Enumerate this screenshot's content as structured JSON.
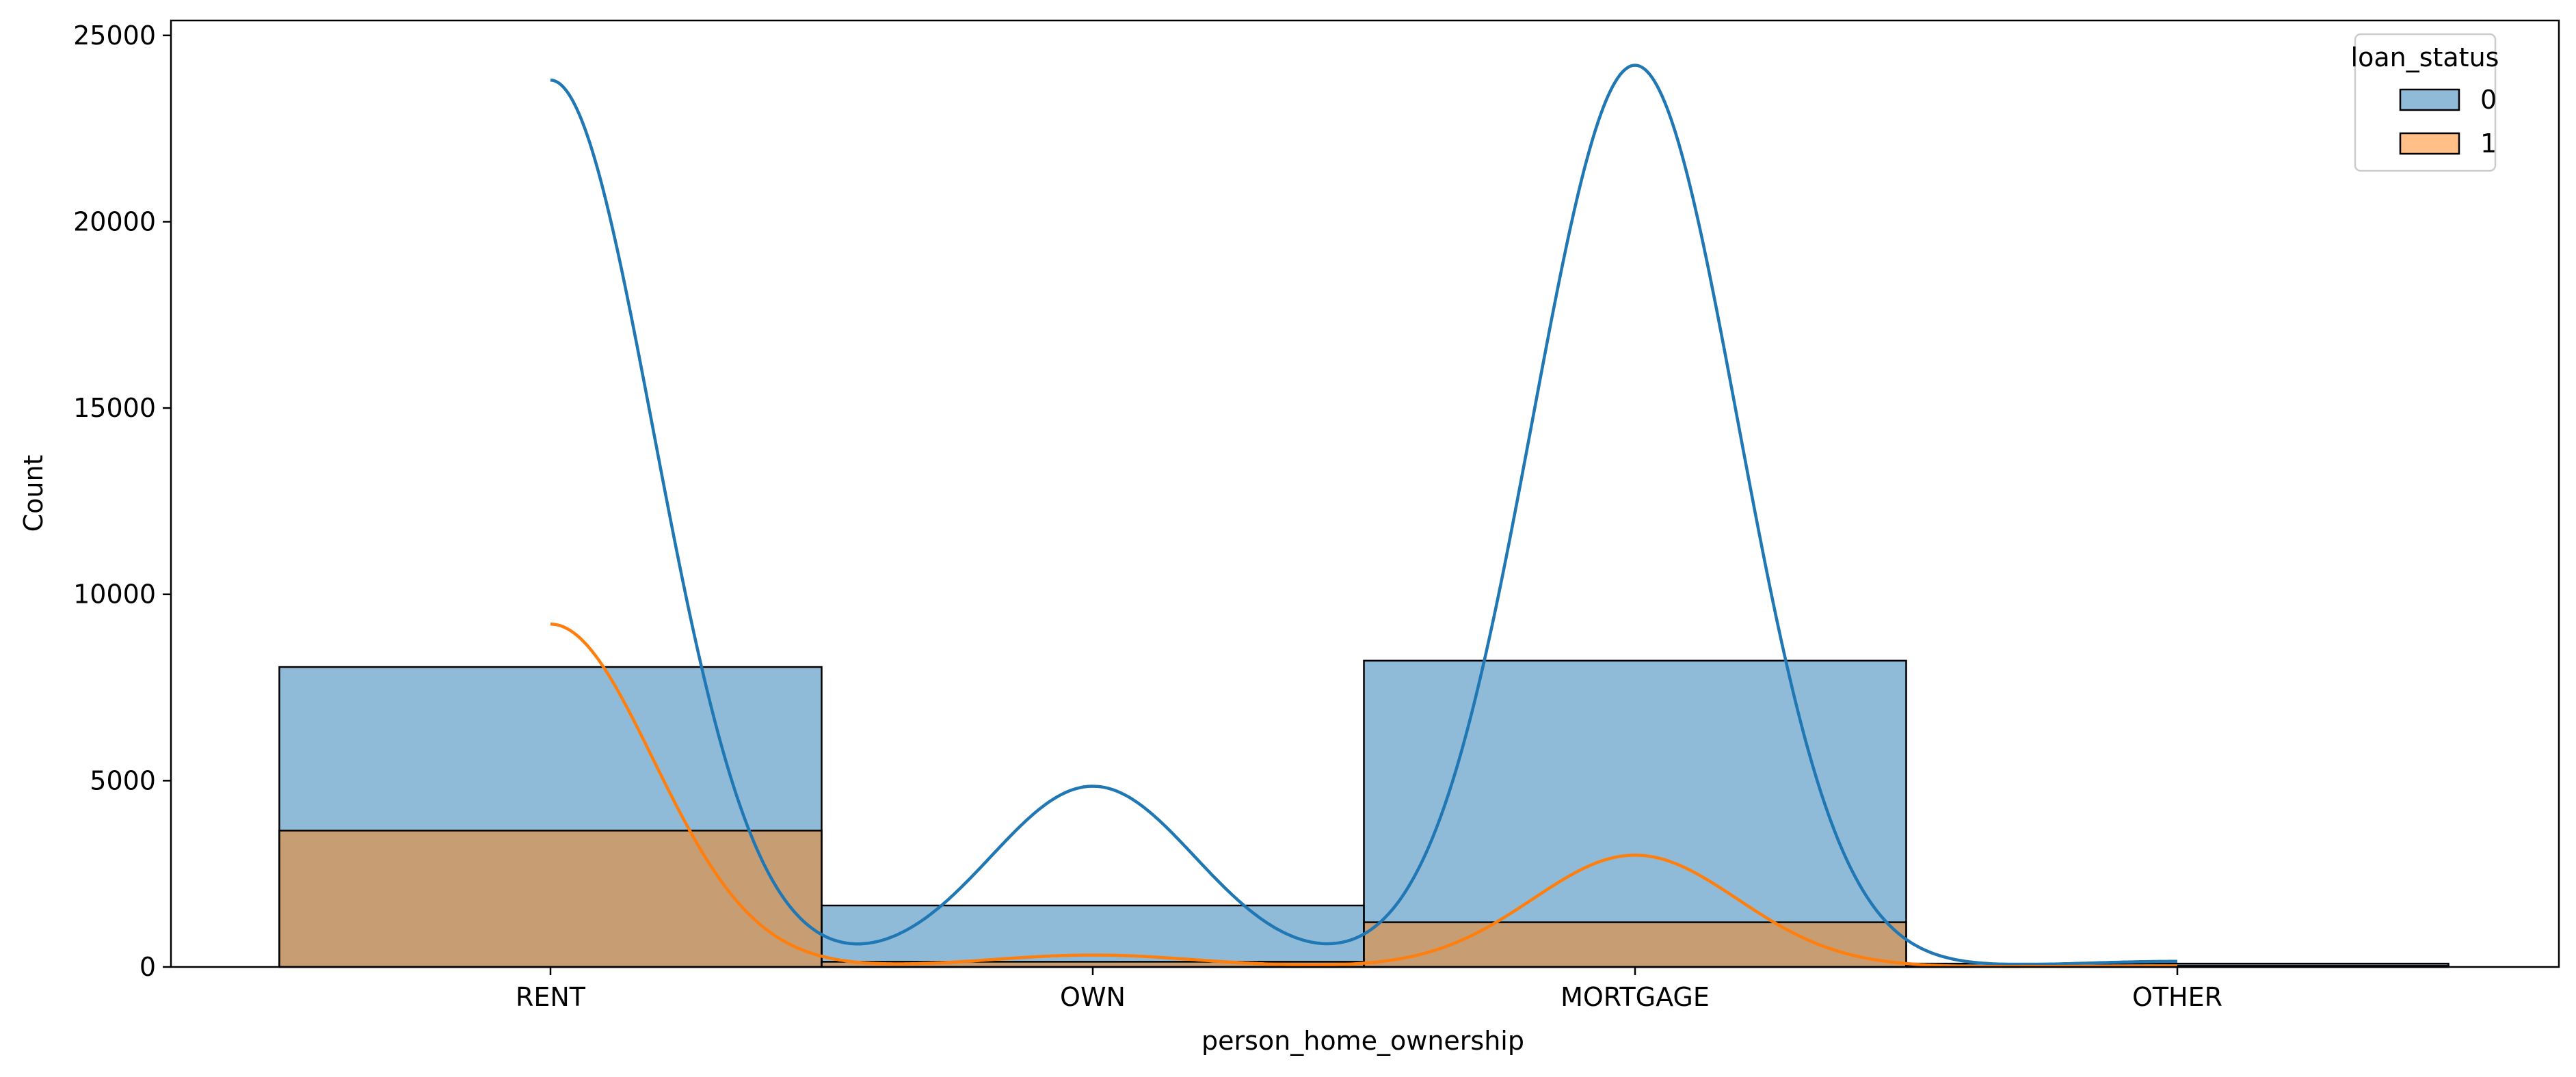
{
  "chart_data": {
    "type": "bar",
    "categories": [
      "RENT",
      "OWN",
      "MORTGAGE",
      "OTHER"
    ],
    "series": [
      {
        "name": "0",
        "values": [
          8050,
          1650,
          8220,
          90
        ],
        "color": "#1f77b4"
      },
      {
        "name": "1",
        "values": [
          3660,
          140,
          1200,
          30
        ],
        "color": "#ff7f0e"
      }
    ],
    "kde": [
      {
        "series": "0",
        "peaks": [
          23800,
          4850,
          24200,
          150
        ]
      },
      {
        "series": "1",
        "peaks": [
          9200,
          320,
          3000,
          30
        ]
      }
    ],
    "xlabel": "person_home_ownership",
    "ylabel": "Count",
    "ylim": [
      0,
      25400
    ],
    "yticks": [
      "0",
      "5000",
      "10000",
      "15000",
      "20000",
      "25000"
    ],
    "legend": {
      "title": "loan_status",
      "placement": "top-right",
      "entries": [
        "0",
        "1"
      ]
    },
    "grid": false
  }
}
